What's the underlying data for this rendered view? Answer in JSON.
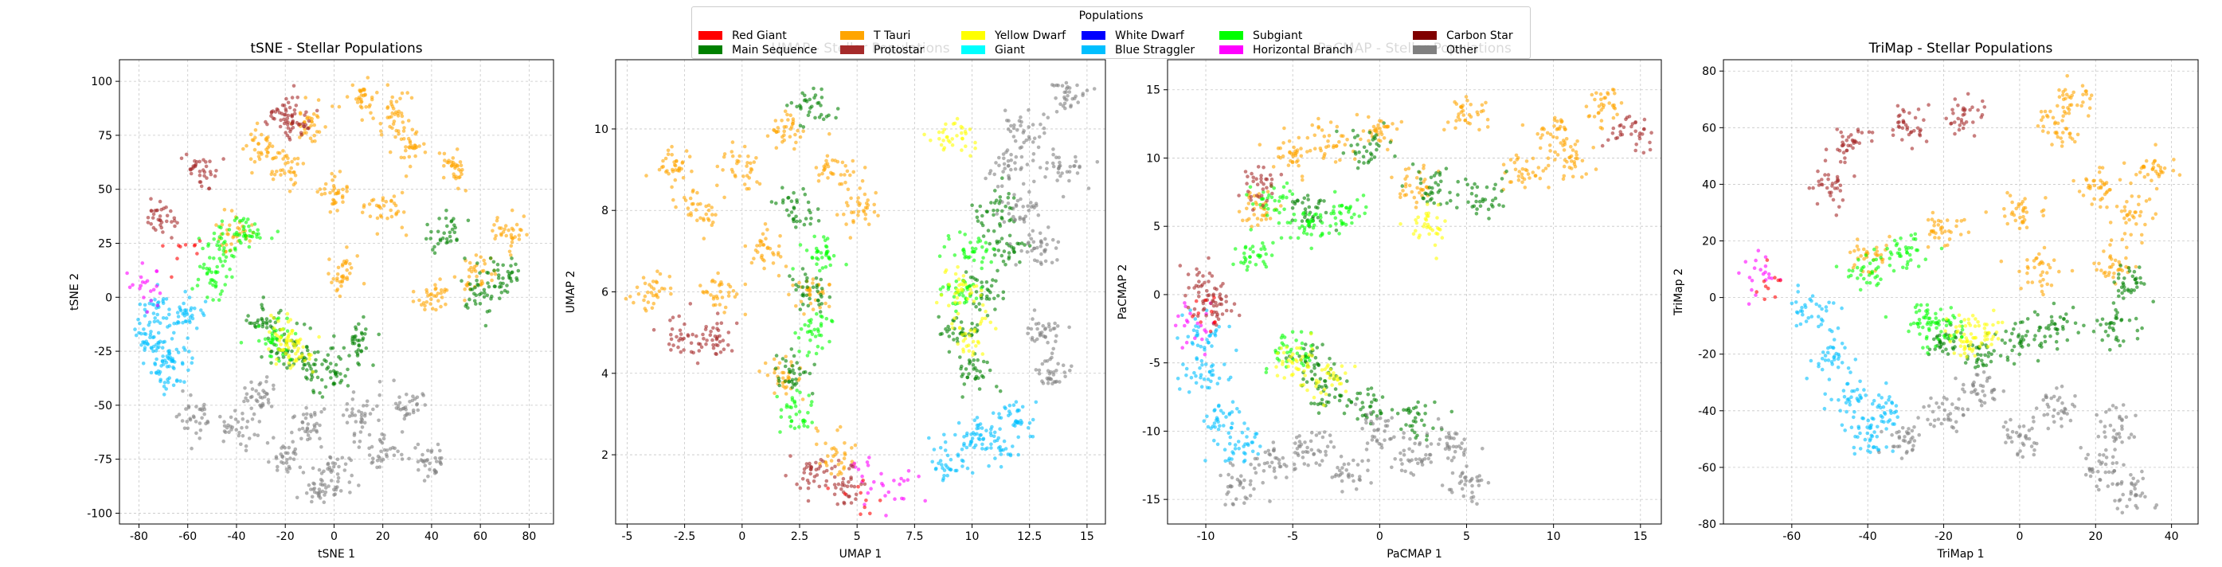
{
  "legend": {
    "title": "Populations",
    "entries": [
      {
        "name": "Red Giant",
        "color": "#ff0000"
      },
      {
        "name": "Main Sequence",
        "color": "#008000"
      },
      {
        "name": "T Tauri",
        "color": "#ffa500"
      },
      {
        "name": "Protostar",
        "color": "#a52a2a"
      },
      {
        "name": "Yellow Dwarf",
        "color": "#ffff00"
      },
      {
        "name": "Giant",
        "color": "#00ffff"
      },
      {
        "name": "White Dwarf",
        "color": "#0000ff"
      },
      {
        "name": "Blue Straggler",
        "color": "#00bfff"
      },
      {
        "name": "Subgiant",
        "color": "#00ff00"
      },
      {
        "name": "Horizontal Branch",
        "color": "#ff00ff"
      },
      {
        "name": "Carbon Star",
        "color": "#800000"
      },
      {
        "name": "Other",
        "color": "#808080"
      }
    ]
  },
  "chart_data": [
    {
      "type": "scatter",
      "title": "tSNE - Stellar Populations",
      "xlabel": "tSNE 1",
      "ylabel": "tSNE 2",
      "xlim": [
        -88,
        90
      ],
      "ylim": [
        -105,
        110
      ],
      "xticks": [
        -80,
        -60,
        -40,
        -20,
        0,
        20,
        40,
        60,
        80
      ],
      "yticks": [
        -100,
        -75,
        -50,
        -25,
        0,
        25,
        50,
        75,
        100
      ],
      "grid": true,
      "clusters": [
        {
          "population": "T Tauri",
          "points": [
            [
              10,
              92
            ],
            [
              30,
              70
            ],
            [
              50,
              60
            ],
            [
              70,
              30
            ],
            [
              20,
              40
            ],
            [
              0,
              50
            ],
            [
              -20,
              60
            ],
            [
              -40,
              30
            ],
            [
              5,
              10
            ],
            [
              40,
              0
            ],
            [
              60,
              10
            ],
            [
              -30,
              70
            ],
            [
              -10,
              80
            ],
            [
              25,
              85
            ]
          ]
        },
        {
          "population": "Main Sequence",
          "points": [
            [
              60,
              0
            ],
            [
              70,
              10
            ],
            [
              45,
              30
            ],
            [
              -10,
              -30
            ],
            [
              -20,
              -25
            ],
            [
              0,
              -35
            ],
            [
              10,
              -20
            ],
            [
              -30,
              -10
            ]
          ]
        },
        {
          "population": "Subgiant",
          "points": [
            [
              -45,
              25
            ],
            [
              -35,
              30
            ],
            [
              -50,
              10
            ],
            [
              -25,
              -20
            ]
          ]
        },
        {
          "population": "Yellow Dwarf",
          "points": [
            [
              -20,
              -20
            ],
            [
              -15,
              -25
            ]
          ]
        },
        {
          "population": "Blue Straggler",
          "points": [
            [
              -75,
              -20
            ],
            [
              -70,
              -35
            ],
            [
              -65,
              -25
            ],
            [
              -60,
              -10
            ],
            [
              -72,
              -5
            ]
          ]
        },
        {
          "population": "Horizontal Branch",
          "points": [
            [
              -78,
              8
            ],
            [
              -76,
              3
            ]
          ]
        },
        {
          "population": "Protostar",
          "points": [
            [
              -70,
              35
            ],
            [
              -20,
              85
            ],
            [
              -55,
              60
            ],
            [
              -15,
              80
            ]
          ]
        },
        {
          "population": "Red Giant",
          "points": [
            [
              -60,
              20
            ]
          ]
        },
        {
          "population": "Other",
          "points": [
            [
              -40,
              -60
            ],
            [
              -20,
              -75
            ],
            [
              0,
              -80
            ],
            [
              20,
              -70
            ],
            [
              30,
              -50
            ],
            [
              -10,
              -60
            ],
            [
              10,
              -55
            ],
            [
              -30,
              -45
            ],
            [
              -55,
              -55
            ],
            [
              40,
              -75
            ],
            [
              -5,
              -90
            ]
          ]
        }
      ]
    },
    {
      "type": "scatter",
      "title": "UMAP - Stellar Populations",
      "xlabel": "UMAP 1",
      "ylabel": "UMAP 2",
      "xlim": [
        -5.5,
        15.8
      ],
      "ylim": [
        0.3,
        11.7
      ],
      "xticks": [
        -5.0,
        -2.5,
        0.0,
        2.5,
        5.0,
        7.5,
        10.0,
        12.5,
        15.0
      ],
      "yticks": [
        2,
        4,
        6,
        8,
        10
      ],
      "grid": true,
      "clusters": [
        {
          "population": "T Tauri",
          "points": [
            [
              -2,
              8
            ],
            [
              0,
              9
            ],
            [
              2,
              10
            ],
            [
              4,
              9
            ],
            [
              -4,
              6
            ],
            [
              -1,
              6
            ],
            [
              1,
              7
            ],
            [
              3,
              6
            ],
            [
              5,
              8
            ],
            [
              -3,
              9
            ],
            [
              2,
              4
            ],
            [
              4,
              2
            ]
          ]
        },
        {
          "population": "Main Sequence",
          "points": [
            [
              3,
              10.5
            ],
            [
              2.5,
              8
            ],
            [
              3,
              6
            ],
            [
              2.2,
              4
            ],
            [
              11,
              8
            ],
            [
              10.5,
              6
            ],
            [
              11.5,
              7
            ],
            [
              9.5,
              5
            ],
            [
              10,
              4
            ]
          ]
        },
        {
          "population": "Subgiant",
          "points": [
            [
              2.5,
              3
            ],
            [
              3,
              5
            ],
            [
              3.5,
              7
            ],
            [
              9.5,
              6
            ],
            [
              10,
              7
            ]
          ]
        },
        {
          "population": "Yellow Dwarf",
          "points": [
            [
              9.5,
              6
            ],
            [
              10,
              5
            ],
            [
              9.2,
              9.8
            ]
          ]
        },
        {
          "population": "Blue Straggler",
          "points": [
            [
              10,
              2.5
            ],
            [
              11,
              2.2
            ],
            [
              12,
              3
            ],
            [
              9,
              1.8
            ]
          ]
        },
        {
          "population": "Horizontal Branch",
          "points": [
            [
              6,
              1
            ],
            [
              7,
              1.2
            ],
            [
              5.2,
              1.5
            ]
          ]
        },
        {
          "population": "Protostar",
          "points": [
            [
              -2.5,
              4.8
            ],
            [
              -1,
              4.9
            ],
            [
              3,
              1.5
            ],
            [
              4.5,
              1.2
            ]
          ]
        },
        {
          "population": "Red Giant",
          "points": [
            [
              5,
              0.9
            ]
          ]
        },
        {
          "population": "Other",
          "points": [
            [
              12,
              8
            ],
            [
              13,
              7
            ],
            [
              14,
              9
            ],
            [
              13,
              5
            ],
            [
              12.5,
              10
            ],
            [
              13.5,
              4
            ],
            [
              14.2,
              10.8
            ],
            [
              11.5,
              9
            ]
          ]
        }
      ]
    },
    {
      "type": "scatter",
      "title": "PaCMAP - Stellar Populations",
      "xlabel": "PaCMAP 1",
      "ylabel": "PaCMAP 2",
      "xlim": [
        -12.2,
        16.2
      ],
      "ylim": [
        -16.8,
        17.2
      ],
      "xticks": [
        -10,
        -5,
        0,
        5,
        10,
        15
      ],
      "yticks": [
        -15,
        -10,
        -5,
        0,
        5,
        10,
        15
      ],
      "grid": true,
      "clusters": [
        {
          "population": "T Tauri",
          "points": [
            [
              -5,
              10
            ],
            [
              0,
              12
            ],
            [
              5,
              13
            ],
            [
              10,
              12
            ],
            [
              13,
              14
            ],
            [
              -7,
              6
            ],
            [
              2,
              8
            ],
            [
              8,
              9
            ],
            [
              11,
              10
            ],
            [
              -3,
              11
            ]
          ]
        },
        {
          "population": "Main Sequence",
          "points": [
            [
              -1,
              11
            ],
            [
              3,
              8
            ],
            [
              6,
              7
            ],
            [
              -4,
              6
            ],
            [
              -3,
              -7
            ],
            [
              -1,
              -8
            ],
            [
              2,
              -9
            ],
            [
              -4,
              -5
            ]
          ]
        },
        {
          "population": "Subgiant",
          "points": [
            [
              -6,
              7
            ],
            [
              -4,
              5
            ],
            [
              -7,
              3
            ],
            [
              -2,
              6
            ],
            [
              -5,
              -4
            ]
          ]
        },
        {
          "population": "Yellow Dwarf",
          "points": [
            [
              -5,
              -5
            ],
            [
              -3,
              -6
            ],
            [
              3,
              5
            ]
          ]
        },
        {
          "population": "Blue Straggler",
          "points": [
            [
              -10,
              -6
            ],
            [
              -9,
              -9
            ],
            [
              -8,
              -11
            ],
            [
              -10,
              -3
            ]
          ]
        },
        {
          "population": "Horizontal Branch",
          "points": [
            [
              -10.5,
              -2
            ],
            [
              -10.6,
              -3
            ]
          ]
        },
        {
          "population": "Protostar",
          "points": [
            [
              -10,
              1
            ],
            [
              14.5,
              12
            ],
            [
              -7,
              8
            ],
            [
              -9.5,
              -1
            ]
          ]
        },
        {
          "population": "Red Giant",
          "points": [
            [
              -10.2,
              -1.5
            ]
          ]
        },
        {
          "population": "Other",
          "points": [
            [
              -6,
              -12
            ],
            [
              -2,
              -13
            ],
            [
              2,
              -12
            ],
            [
              5,
              -14
            ],
            [
              -8,
              -14
            ],
            [
              0,
              -10
            ],
            [
              4,
              -11
            ],
            [
              -4,
              -11
            ]
          ]
        }
      ]
    },
    {
      "type": "scatter",
      "title": "TriMap - Stellar Populations",
      "xlabel": "TriMap 1",
      "ylabel": "TriMap 2",
      "xlim": [
        -78,
        47
      ],
      "ylim": [
        -80,
        84
      ],
      "xticks": [
        -60,
        -40,
        -20,
        0,
        20,
        40
      ],
      "yticks": [
        -80,
        -60,
        -40,
        -20,
        0,
        20,
        40,
        60,
        80
      ],
      "grid": true,
      "clusters": [
        {
          "population": "T Tauri",
          "points": [
            [
              10,
              60
            ],
            [
              20,
              40
            ],
            [
              30,
              30
            ],
            [
              0,
              30
            ],
            [
              -20,
              25
            ],
            [
              25,
              10
            ],
            [
              5,
              10
            ],
            [
              -40,
              15
            ],
            [
              35,
              45
            ],
            [
              15,
              70
            ]
          ]
        },
        {
          "population": "Main Sequence",
          "points": [
            [
              -10,
              -20
            ],
            [
              0,
              -15
            ],
            [
              10,
              -10
            ],
            [
              -20,
              -15
            ],
            [
              25,
              -10
            ],
            [
              30,
              5
            ]
          ]
        },
        {
          "population": "Subgiant",
          "points": [
            [
              -30,
              15
            ],
            [
              -20,
              -10
            ],
            [
              -40,
              10
            ],
            [
              -25,
              -8
            ]
          ]
        },
        {
          "population": "Yellow Dwarf",
          "points": [
            [
              -15,
              -15
            ],
            [
              -10,
              -12
            ]
          ]
        },
        {
          "population": "Blue Straggler",
          "points": [
            [
              -50,
              -20
            ],
            [
              -45,
              -35
            ],
            [
              -40,
              -50
            ],
            [
              -55,
              -5
            ],
            [
              -35,
              -40
            ]
          ]
        },
        {
          "population": "Horizontal Branch",
          "points": [
            [
              -70,
              10
            ],
            [
              -69,
              7
            ]
          ]
        },
        {
          "population": "Protostar",
          "points": [
            [
              -45,
              55
            ],
            [
              -30,
              60
            ],
            [
              -15,
              65
            ],
            [
              -50,
              40
            ]
          ]
        },
        {
          "population": "Red Giant",
          "points": [
            [
              -65,
              5
            ]
          ]
        },
        {
          "population": "Other",
          "points": [
            [
              -20,
              -40
            ],
            [
              0,
              -50
            ],
            [
              20,
              -60
            ],
            [
              -10,
              -30
            ],
            [
              10,
              -40
            ],
            [
              -30,
              -50
            ],
            [
              30,
              -70
            ],
            [
              25,
              -45
            ]
          ]
        }
      ]
    }
  ]
}
